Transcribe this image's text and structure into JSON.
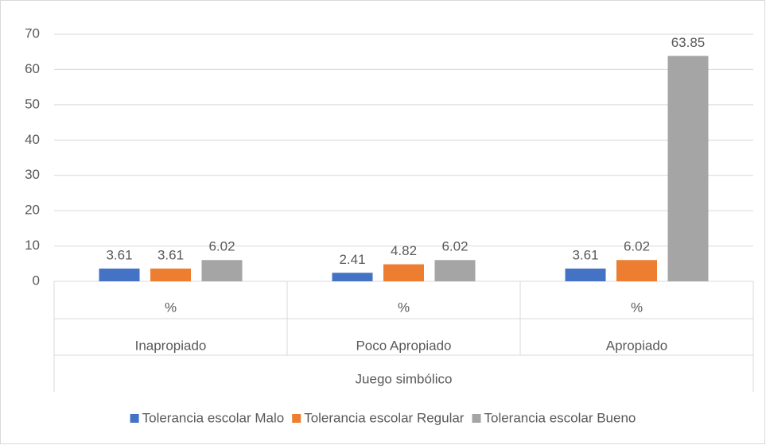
{
  "chart_data": {
    "type": "bar",
    "categories": [
      "Inapropiado",
      "Poco Apropiado",
      "Apropiado"
    ],
    "subcategories": [
      "%",
      "%",
      "%"
    ],
    "group_label": "Juego simbólico",
    "series": [
      {
        "name": "Tolerancia escolar Malo",
        "color": "#4472c4",
        "values": [
          3.61,
          2.41,
          3.61
        ]
      },
      {
        "name": "Tolerancia escolar Regular",
        "color": "#ed7d31",
        "values": [
          3.61,
          4.82,
          6.02
        ]
      },
      {
        "name": "Tolerancia escolar Bueno",
        "color": "#a5a5a5",
        "values": [
          6.02,
          6.02,
          63.85
        ]
      }
    ],
    "ylim": [
      0,
      70
    ],
    "yticks": [
      0,
      10,
      20,
      30,
      40,
      50,
      60,
      70
    ],
    "grid": true,
    "legend": "bottom"
  }
}
